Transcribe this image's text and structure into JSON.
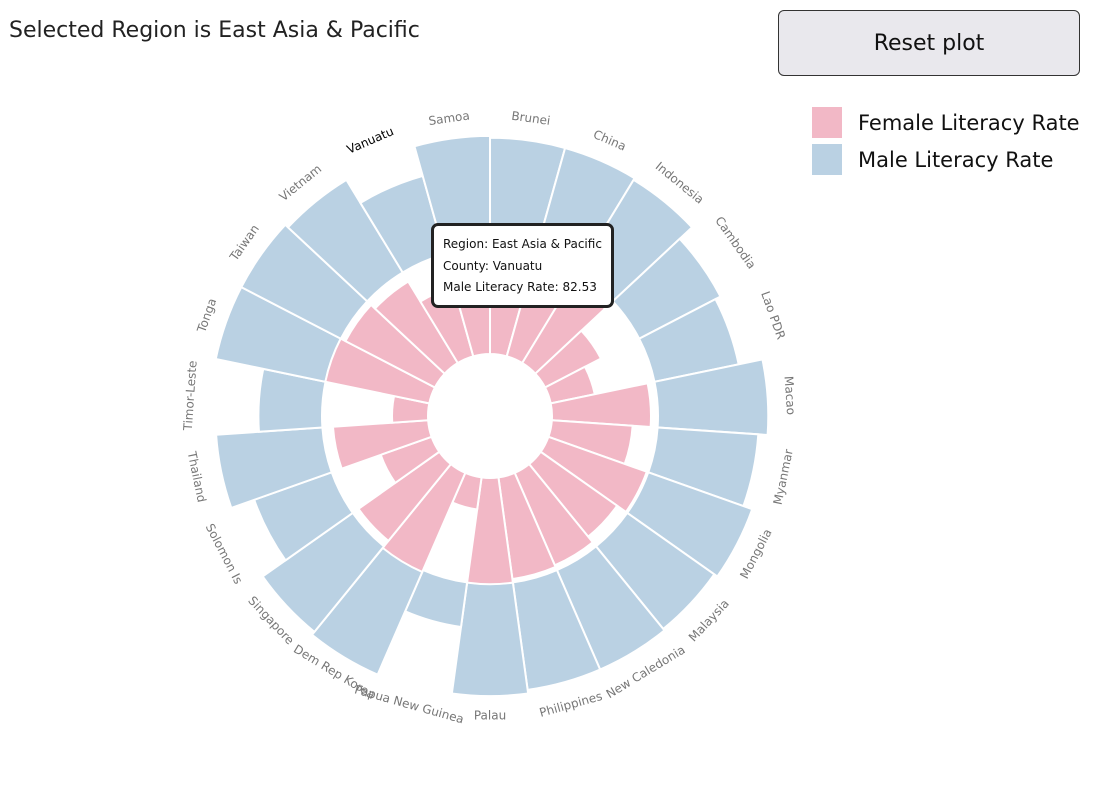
{
  "header": {
    "title": "Selected Region is East Asia & Pacific",
    "reset_label": "Reset plot"
  },
  "legend": [
    {
      "label": "Female Literacy Rate",
      "color": "#f2b8c6"
    },
    {
      "label": "Male Literacy Rate",
      "color": "#bad1e3"
    }
  ],
  "tooltip": {
    "region_line": "Region: East Asia & Pacific",
    "country_line": "County: Vanuatu",
    "value_line": "Male Literacy Rate: 82.53"
  },
  "chart_data": {
    "type": "radial-bar",
    "region": "East Asia & Pacific",
    "highlighted_category": "Vanuatu",
    "categories": [
      "Brunei",
      "China",
      "Indonesia",
      "Cambodia",
      "Lao PDR",
      "Macao",
      "Myanmar",
      "Mongolia",
      "Malaysia",
      "New Caledonia",
      "Philippines",
      "Palau",
      "Papua New Guinea",
      "Dem Rep Korea",
      "Singapore",
      "Solomon Is",
      "Thailand",
      "Timor-Leste",
      "Tonga",
      "Taiwan",
      "Vietnam",
      "Vanuatu",
      "Samoa"
    ],
    "series": [
      {
        "name": "Male Literacy Rate",
        "color": "#bad1e3",
        "values": [
          98,
          98,
          97,
          88,
          85,
          98,
          93,
          98,
          96,
          97,
          97,
          99,
          63,
          100,
          98,
          83,
          96,
          73,
          99,
          99,
          97,
          82.53,
          99
        ]
      },
      {
        "name": "Female Literacy Rate",
        "color": "#f2b8c6",
        "values": [
          95,
          93,
          93,
          75,
          65,
          95,
          85,
          98,
          92,
          96,
          97,
          99,
          58,
          100,
          95,
          70,
          93,
          60,
          99,
          96,
          93,
          80,
          99
        ]
      }
    ]
  }
}
